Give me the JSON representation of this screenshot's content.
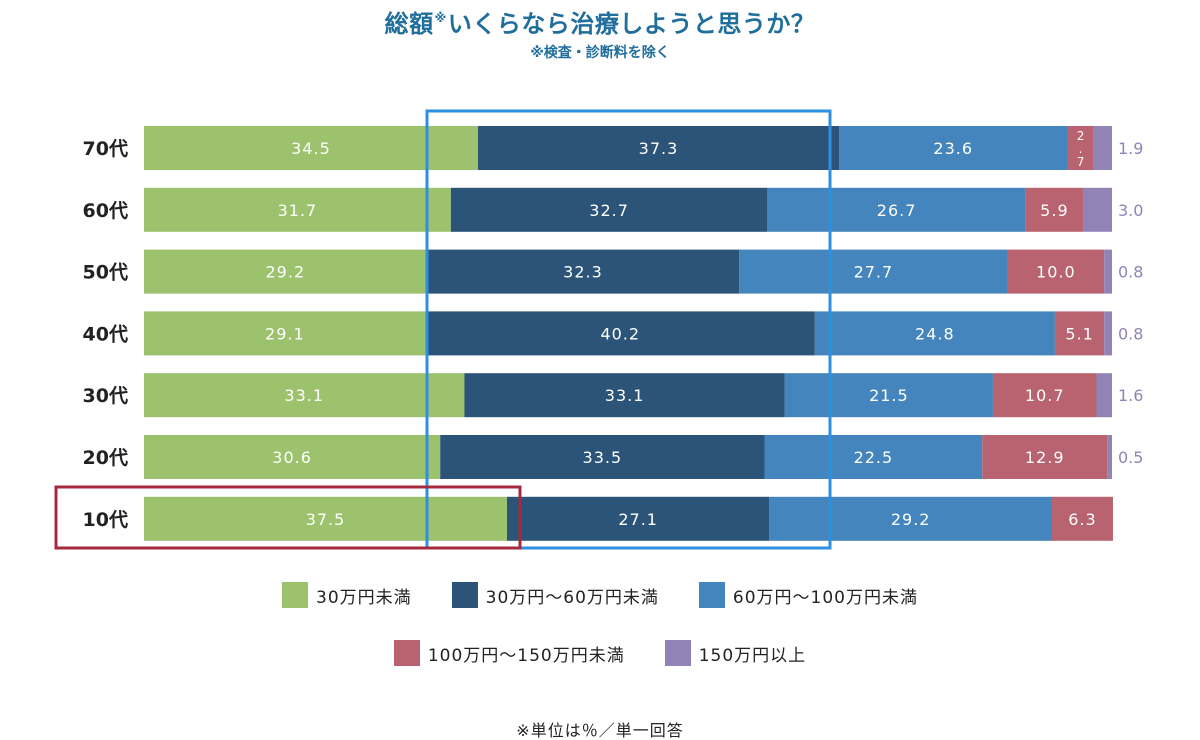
{
  "title": {
    "main_before": "総額",
    "mark": "※",
    "main_after": "いくらなら治療しようと思うか？",
    "subtitle": "※検査・診断料を除く"
  },
  "footnote": "※単位は％／単一回答",
  "colors": {
    "under30": "#9cc26d",
    "r30_60": "#2b5478",
    "r60_100": "#4485bd",
    "r100_150": "#b8636f",
    "over150": "#9283b6",
    "highlight_blue": "#2f8fe0",
    "highlight_red": "#a52a3e",
    "title_blue": "#1f6e9c"
  },
  "chart_data": {
    "type": "bar",
    "orientation": "horizontal",
    "stacked": true,
    "categories": [
      "70代",
      "60代",
      "50代",
      "40代",
      "30代",
      "20代",
      "10代"
    ],
    "series": [
      {
        "name": "30万円未満",
        "color_key": "under30",
        "values": [
          34.5,
          31.7,
          29.2,
          29.1,
          33.1,
          30.6,
          37.5
        ]
      },
      {
        "name": "30万円～60万円未満",
        "color_key": "r30_60",
        "values": [
          37.3,
          32.7,
          32.3,
          40.2,
          33.1,
          33.5,
          27.1
        ]
      },
      {
        "name": "60万円～100万円未満",
        "color_key": "r60_100",
        "values": [
          23.6,
          26.7,
          27.7,
          24.8,
          21.5,
          22.5,
          29.2
        ]
      },
      {
        "name": "100万円～150万円未満",
        "color_key": "r100_150",
        "values": [
          2.7,
          5.9,
          10.0,
          5.1,
          10.7,
          12.9,
          6.3
        ]
      },
      {
        "name": "150万円以上",
        "color_key": "over150",
        "values": [
          1.9,
          3.0,
          0.8,
          0.8,
          1.6,
          0.5,
          null
        ]
      }
    ],
    "value_labels": [
      [
        "34.5",
        "37.3",
        "23.6",
        "2.7",
        "1.9"
      ],
      [
        "31.7",
        "32.7",
        "26.7",
        "5.9",
        "3.0"
      ],
      [
        "29.2",
        "32.3",
        "27.7",
        "10.0",
        "0.8"
      ],
      [
        "29.1",
        "40.2",
        "24.8",
        "5.1",
        "0.8"
      ],
      [
        "33.1",
        "33.1",
        "21.5",
        "10.7",
        "1.6"
      ],
      [
        "30.6",
        "33.5",
        "22.5",
        "12.9",
        "0.5"
      ],
      [
        "37.5",
        "27.1",
        "29.2",
        "6.3",
        ""
      ]
    ],
    "xlim": [
      0,
      100
    ],
    "unit": "%",
    "legend_position": "bottom",
    "grid": false,
    "highlights": [
      "blue frame around the 30万円～60万円未満 segments",
      "red frame around the 10代 row"
    ]
  }
}
